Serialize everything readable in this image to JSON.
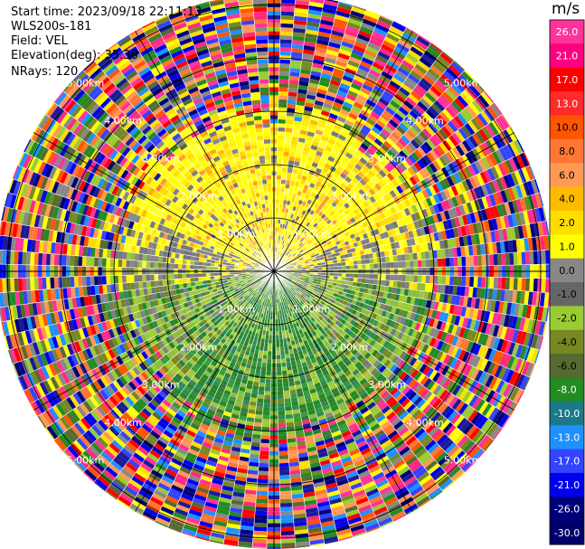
{
  "header": {
    "start_time": "Start time: 2023/09/18 22:11:13",
    "instrument": "WLS200s-181",
    "field": "Field: VEL",
    "elevation": "Elevation(deg): 35.30",
    "nrays": "NRays: 120"
  },
  "colorbar": {
    "unit": "m/s",
    "labels": [
      "26.0",
      "21.0",
      "17.0",
      "13.0",
      "10.0",
      "8.0",
      "6.0",
      "4.0",
      "2.0",
      "1.0",
      "0.0",
      "-1.0",
      "-2.0",
      "-4.0",
      "-6.0",
      "-8.0",
      "-10.0",
      "-13.0",
      "-17.0",
      "-21.0",
      "-26.0",
      "-30.0"
    ],
    "colors": [
      "#ff3399",
      "#ff0080",
      "#ff0000",
      "#ff2a2a",
      "#ff5500",
      "#ff7733",
      "#ff9955",
      "#ffbb00",
      "#ffdd00",
      "#ffff00",
      "#888888",
      "#666666",
      "#99cc33",
      "#778822",
      "#556b2f",
      "#228b22",
      "#1a7a8a",
      "#1e90ff",
      "#3344ff",
      "#0000ee",
      "#00007a",
      "#00006b"
    ]
  },
  "chart_data": {
    "type": "ppi_polar",
    "field": "VEL",
    "nrays": 120,
    "range_rings_km": [
      1.0,
      2.0,
      3.0,
      4.0,
      5.0
    ],
    "ring_labels": [
      "1.00km",
      "2.00km",
      "3.00km",
      "4.00km",
      "5.00km"
    ],
    "spoke_angles_deg": [
      0,
      30,
      60,
      90,
      120,
      150,
      180,
      210,
      240,
      270,
      300,
      330
    ],
    "valid_data_range_km": 3.1,
    "max_range_km": 5.2,
    "regions": [
      {
        "name": "positive (yellow) velocities",
        "sector": "north half",
        "value_ms": 2.0
      },
      {
        "name": "near-zero (gray) velocities",
        "sector": "near horizontal axis",
        "value_ms": 0.0
      },
      {
        "name": "negative (olive/green) velocities",
        "sector": "south half",
        "value_ms": -4.0
      }
    ]
  }
}
